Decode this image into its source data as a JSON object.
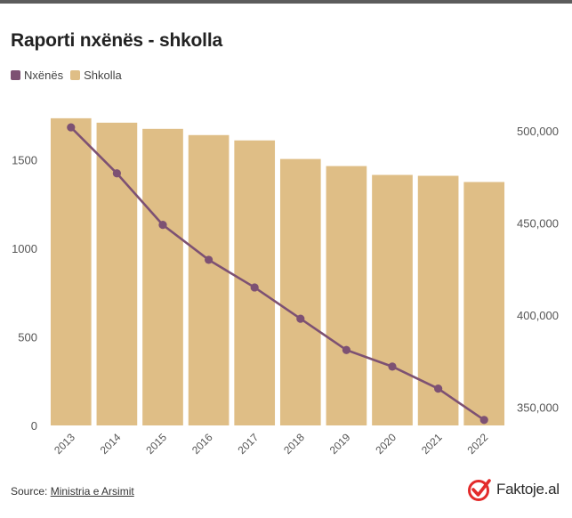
{
  "title": "Raporti nxënës - shkolla",
  "legend": [
    {
      "label": "Nxënës",
      "color": "#7d5173"
    },
    {
      "label": "Shkolla",
      "color": "#dfbe86"
    }
  ],
  "source": {
    "prefix": "Source: ",
    "link": "Ministria e Arsimit"
  },
  "logo": {
    "text": "Faktoje.al",
    "color": "#e32b2b"
  },
  "chart_data": {
    "type": "bar+line",
    "categories": [
      "2013",
      "2014",
      "2015",
      "2016",
      "2017",
      "2018",
      "2019",
      "2020",
      "2021",
      "2022"
    ],
    "series": [
      {
        "name": "Shkolla",
        "type": "bar",
        "axis": "left",
        "color": "#dfbe86",
        "values": [
          1735,
          1710,
          1675,
          1640,
          1610,
          1505,
          1465,
          1415,
          1410,
          1375
        ]
      },
      {
        "name": "Nxënës",
        "type": "line",
        "axis": "right",
        "color": "#7d5173",
        "values": [
          502000,
          477000,
          449000,
          430000,
          415000,
          398000,
          381000,
          372000,
          360000,
          343000
        ]
      }
    ],
    "left_axis": {
      "ticks": [
        0,
        500,
        1000,
        1500
      ],
      "tick_labels": [
        "0",
        "500",
        "1000",
        "1500"
      ],
      "range": [
        0,
        1850
      ]
    },
    "right_axis": {
      "ticks": [
        350000,
        400000,
        450000,
        500000
      ],
      "tick_labels": [
        "350,000",
        "400,000",
        "450,000",
        "500,000"
      ],
      "range": [
        340000,
        518000
      ]
    },
    "grid": false,
    "legend_position": "top-left"
  }
}
